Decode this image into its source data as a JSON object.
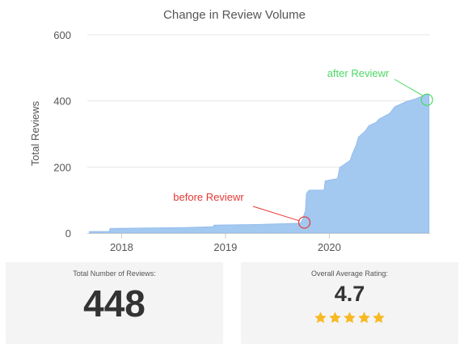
{
  "chart_data": {
    "type": "area",
    "title": "Change in Review Volume",
    "ylabel": "Total Reviews",
    "xlabel": "",
    "ylim": [
      0,
      600
    ],
    "xlim": [
      2017.67,
      2020.97
    ],
    "yticks": [
      0,
      200,
      400,
      600
    ],
    "xticks": [
      2018,
      2019,
      2020
    ],
    "grid": "horizontal",
    "color": "#a3c9f1",
    "series": [
      {
        "x": [
          2017.69,
          2017.88,
          2017.89,
          2018.6,
          2018.88,
          2018.89,
          2019.3,
          2019.72,
          2019.74,
          2019.77,
          2019.78,
          2019.8,
          2019.81,
          2019.95,
          2019.96,
          2020.08,
          2020.1,
          2020.2,
          2020.22,
          2020.26,
          2020.28,
          2020.35,
          2020.38,
          2020.45,
          2020.48,
          2020.58,
          2020.63,
          2020.7,
          2020.74,
          2020.82,
          2020.9,
          2020.96
        ],
        "y": [
          5,
          5,
          14,
          17,
          19,
          24,
          26,
          30,
          40,
          68,
          120,
          128,
          130,
          130,
          158,
          165,
          198,
          220,
          238,
          268,
          290,
          310,
          325,
          335,
          345,
          362,
          382,
          392,
          398,
          405,
          415,
          420
        ]
      }
    ],
    "annotations": [
      {
        "text": "before Reviewr",
        "x": 2019.76,
        "y": 32,
        "color": "#e53935"
      },
      {
        "text": "after Reviewr",
        "x": 2020.94,
        "y": 433,
        "color": "#4cd964"
      }
    ]
  },
  "stats": {
    "reviews_label": "Total Number of Reviews:",
    "reviews_value": "448",
    "rating_label": "Overall Average Rating:",
    "rating_value": "4.7",
    "stars": 5,
    "star_color": "#f7b924"
  }
}
